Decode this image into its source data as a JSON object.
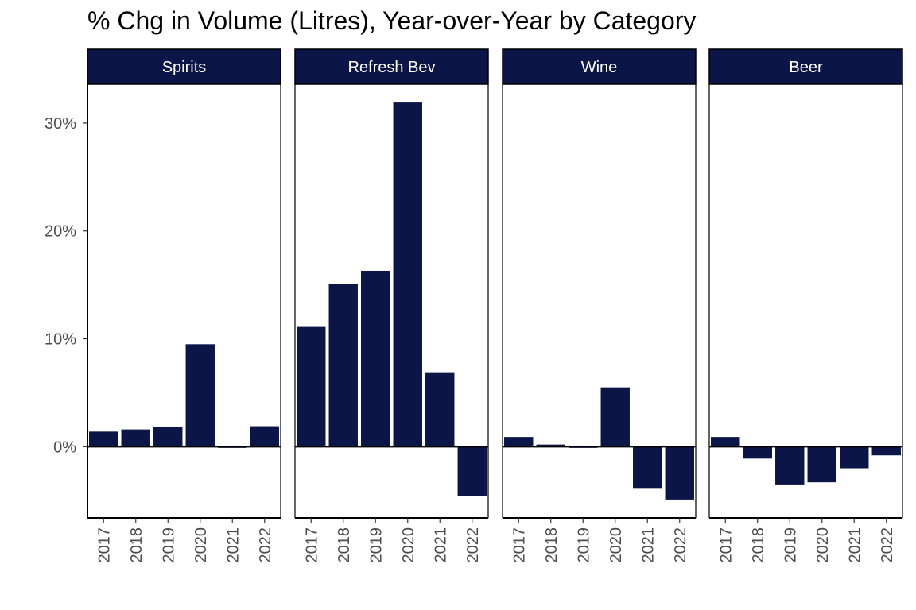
{
  "chart_data": {
    "type": "bar",
    "title": "% Chg in Volume (Litres), Year-over-Year by Category",
    "xlabel": "",
    "ylabel": "",
    "categories": [
      "2017",
      "2018",
      "2019",
      "2020",
      "2021",
      "2022"
    ],
    "ylim": [
      -6.6,
      33.6
    ],
    "yticks": [
      0,
      10,
      20,
      30
    ],
    "ytick_labels": [
      "0%",
      "10%",
      "20%",
      "30%"
    ],
    "grid": false,
    "legend": "none",
    "bar_color": "#0b1547",
    "strip_color": "#0b1547",
    "panels": [
      {
        "name": "Spirits",
        "values": [
          1.4,
          1.6,
          1.8,
          9.5,
          -0.1,
          1.9
        ]
      },
      {
        "name": "Refresh Bev",
        "values": [
          11.1,
          15.1,
          16.3,
          31.9,
          6.9,
          -4.6
        ]
      },
      {
        "name": "Wine",
        "values": [
          0.9,
          0.2,
          -0.1,
          5.5,
          -3.9,
          -4.9
        ]
      },
      {
        "name": "Beer",
        "values": [
          0.9,
          -1.1,
          -3.5,
          -3.3,
          -2.0,
          -0.8
        ]
      }
    ]
  }
}
